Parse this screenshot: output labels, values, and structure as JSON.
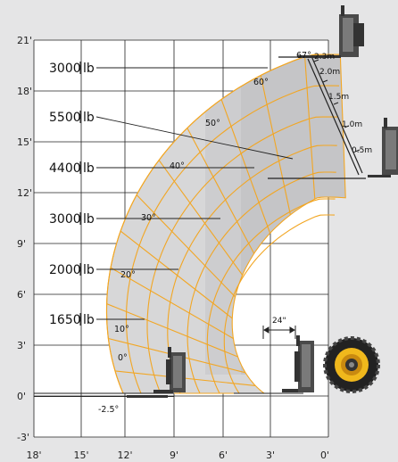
{
  "axes": {
    "y_ticks": [
      "21'",
      "18'",
      "15'",
      "12'",
      "9'",
      "6'",
      "3'",
      "0'",
      "-3'"
    ],
    "x_ticks": [
      "18'",
      "15'",
      "12'",
      "9'",
      "6'",
      "3'",
      "0'"
    ]
  },
  "load_zones": [
    {
      "value": "3000",
      "unit": "lb"
    },
    {
      "value": "5500",
      "unit": "lb"
    },
    {
      "value": "4400",
      "unit": "lb"
    },
    {
      "value": "3000",
      "unit": "lb"
    },
    {
      "value": "2000",
      "unit": "lb"
    },
    {
      "value": "1650",
      "unit": "lb"
    }
  ],
  "boom_angles": [
    "67°",
    "60°",
    "50°",
    "40°",
    "30°",
    "20°",
    "10°",
    "0°",
    "-2.5°"
  ],
  "extension_marks": [
    "2.3m",
    "2.0m",
    "1.5m",
    "1.0m",
    "0.5m"
  ],
  "fork_offset": "24\"",
  "colors": {
    "background": "#e5e5e6",
    "grid_area": "#ffffff",
    "envelope_fill": "#d7d7d8",
    "envelope_band": "#c5c5c7",
    "contour": "#f2a623",
    "grid_line": "#222222",
    "tire": "#222222",
    "rim": "#f0b81c"
  },
  "icons": {
    "fork_carriage": "fork-carriage-icon",
    "tire": "tire-icon"
  }
}
